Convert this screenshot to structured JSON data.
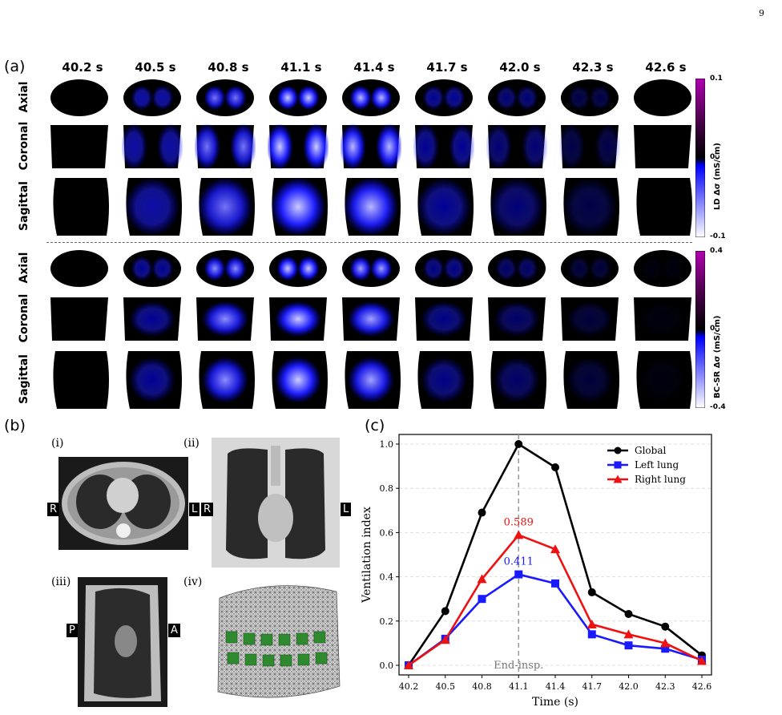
{
  "page_number": "9",
  "panel_a": {
    "label": "(a)",
    "times": [
      "40.2 s",
      "40.5 s",
      "40.8 s",
      "41.1 s",
      "41.4 s",
      "41.7 s",
      "42.0 s",
      "42.3 s",
      "42.6 s"
    ],
    "views": [
      "Axial",
      "Coronal",
      "Sagittal"
    ],
    "ld": {
      "intensity": [
        0.0,
        0.55,
        0.8,
        1.0,
        0.95,
        0.5,
        0.4,
        0.25,
        0.0
      ]
    },
    "bcsr": {
      "intensity": [
        0.0,
        0.5,
        0.85,
        1.0,
        0.9,
        0.45,
        0.35,
        0.2,
        0.05
      ]
    },
    "colorbar_top": {
      "title": "LD Δσ (mS/cm)",
      "max": "0.1",
      "mid": "0",
      "min": "-0.1"
    },
    "colorbar_bottom": {
      "title": "BC-SR Δσ (mS/cm)",
      "max": "0.4",
      "mid": "0",
      "min": "-0.4"
    }
  },
  "panel_b": {
    "label": "(b)",
    "sub": [
      "(i)",
      "(ii)",
      "(iii)",
      "(iv)"
    ],
    "orient_i": [
      "R",
      "L"
    ],
    "orient_ii": [
      "R",
      "L"
    ],
    "orient_iii": [
      "P",
      "A"
    ]
  },
  "panel_c": {
    "label": "(c)"
  },
  "chart_data": {
    "type": "line",
    "x": [
      "40.2",
      "40.5",
      "40.8",
      "41.1",
      "41.4",
      "41.7",
      "42.0",
      "42.3",
      "42.6"
    ],
    "xlabel": "Time (s)",
    "ylabel": "Ventilation index",
    "ylim": [
      0,
      1.0
    ],
    "yticks": [
      "0.0",
      "0.2",
      "0.4",
      "0.6",
      "0.8",
      "1.0"
    ],
    "grid": true,
    "legend": "top-right",
    "series": [
      {
        "name": "Global",
        "color": "#000000",
        "marker": "circle",
        "values": [
          0.0,
          0.245,
          0.69,
          1.0,
          0.895,
          0.33,
          0.232,
          0.175,
          0.045
        ]
      },
      {
        "name": "Left lung",
        "color": "#1a1aff",
        "marker": "square",
        "values": [
          0.0,
          0.12,
          0.3,
          0.411,
          0.37,
          0.14,
          0.09,
          0.075,
          0.025
        ]
      },
      {
        "name": "Right lung",
        "color": "#ee1111",
        "marker": "triangle",
        "values": [
          0.0,
          0.115,
          0.39,
          0.589,
          0.525,
          0.185,
          0.14,
          0.1,
          0.02
        ]
      }
    ],
    "annotations": [
      {
        "text": "0.589",
        "color": "#ee1111",
        "x": "41.1",
        "y": 0.589
      },
      {
        "text": "0.411",
        "color": "#1a1aff",
        "x": "41.1",
        "y": 0.411
      },
      {
        "text": "End-insp.",
        "color": "#777777",
        "x": "41.1",
        "y": 0.0
      }
    ]
  }
}
